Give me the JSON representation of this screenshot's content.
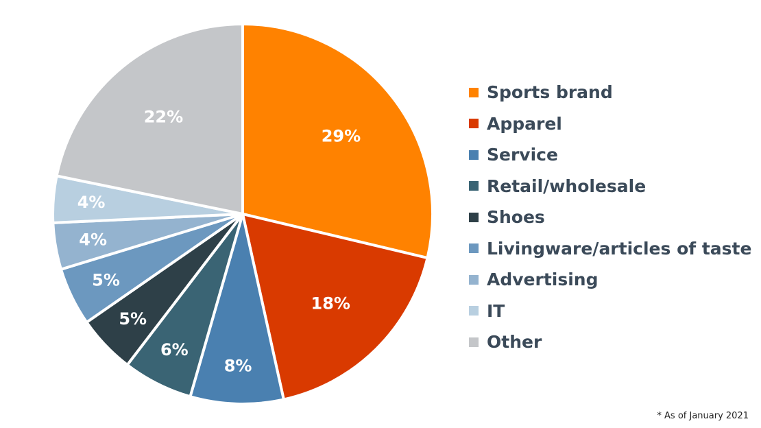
{
  "chart_data": {
    "type": "pie",
    "categories": [
      "Sports brand",
      "Apparel",
      "Service",
      "Retail/wholesale",
      "Shoes",
      "Livingware/articles of taste",
      "Advertising",
      "IT",
      "Other"
    ],
    "values": [
      29,
      18,
      8,
      6,
      5,
      5,
      4,
      4,
      22
    ],
    "value_labels": [
      "29%",
      "18%",
      "8%",
      "6%",
      "5%",
      "5%",
      "4%",
      "4%",
      "22%"
    ],
    "colors": [
      "#ff8200",
      "#d93a00",
      "#4a80b0",
      "#3a6474",
      "#2e4048",
      "#6c98bf",
      "#94b3cf",
      "#b8cfe0",
      "#c4c6c9"
    ],
    "legend_position": "right",
    "start_angle": "12 o'clock",
    "direction": "clockwise"
  },
  "footnote": "* As of January 2021"
}
